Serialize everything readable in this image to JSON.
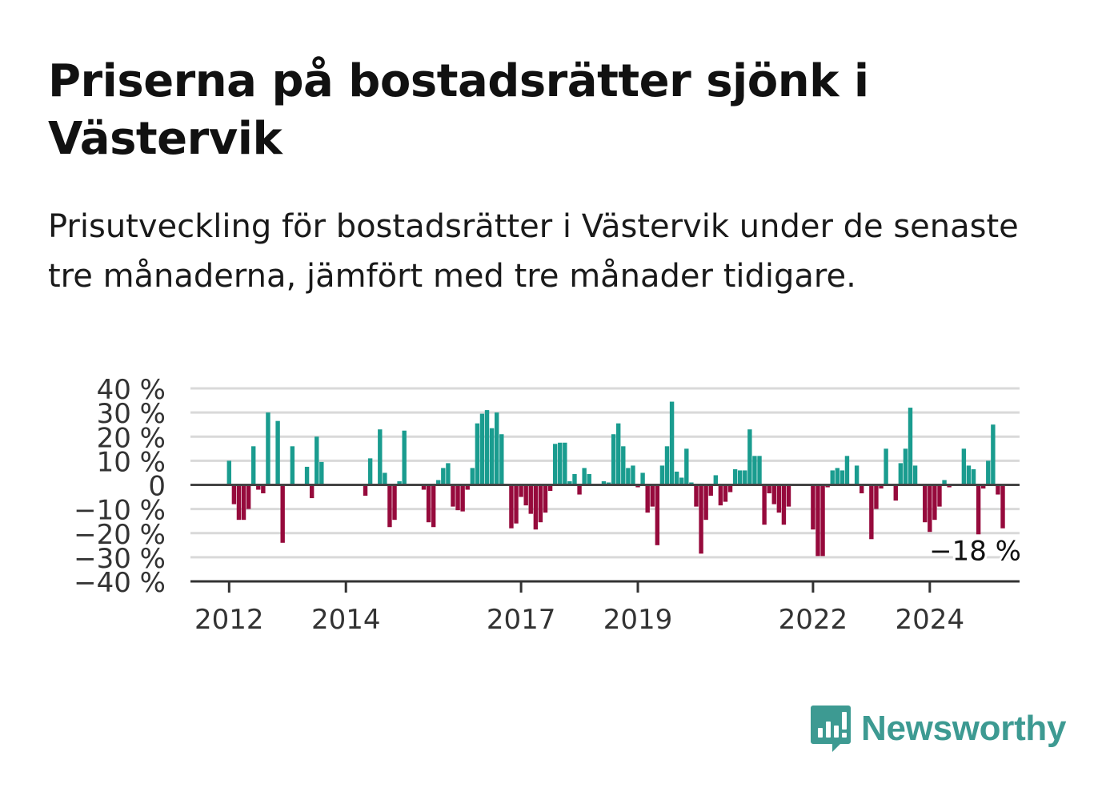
{
  "header": {
    "title": "Priserna på bostadsrätter sjönk i Västervik",
    "subtitle": "Prisutveckling för bostadsrätter i Västervik under de senaste tre månaderna, jämfört med tre månader tidigare."
  },
  "brand": {
    "name": "Newsworthy",
    "icon": "newsworthy-logo-icon",
    "color": "#3d9a92"
  },
  "colors": {
    "positive": "#1a9c8f",
    "negative": "#960a3c",
    "grid": "#d9d9d9",
    "axis": "#444444"
  },
  "chart_data": {
    "type": "bar",
    "title": "Priserna på bostadsrätter sjönk i Västervik",
    "x_unit": "month",
    "x_start": "2012-01",
    "x_end": "2024-12",
    "x_ticks": [
      "2012",
      "2014",
      "2017",
      "2019",
      "2022",
      "2024"
    ],
    "y_ticks": [
      40,
      30,
      20,
      10,
      0,
      -10,
      -20,
      -30,
      -40
    ],
    "y_tick_labels": [
      "40 %",
      "30 %",
      "20 %",
      "10 %",
      "0",
      "−10 %",
      "−20 %",
      "−30 %",
      "−40 %"
    ],
    "ylim": [
      -40,
      40
    ],
    "grid": true,
    "last_value_label": "−18 %",
    "series": [
      {
        "unit": "%",
        "values": [
          10,
          -8,
          -14.5,
          -14.5,
          -10,
          16,
          -2,
          -3.5,
          30,
          0,
          26.5,
          -24,
          0,
          16,
          0,
          0,
          7.5,
          -5.5,
          20,
          9.5,
          0,
          0,
          0,
          0,
          0,
          0,
          0,
          0,
          -4.5,
          11,
          0,
          23,
          5,
          -17.5,
          -14.5,
          1.5,
          22.5,
          0,
          0,
          0,
          -2,
          -15.5,
          -17.5,
          2,
          7,
          9,
          -9,
          -10.5,
          -11,
          -2,
          7,
          25.5,
          29.5,
          31,
          23.5,
          30,
          21,
          0,
          -18,
          -16,
          -5,
          -8.5,
          -12,
          -18.5,
          -15.5,
          -11.5,
          -2.5,
          17,
          17.5,
          17.5,
          1.5,
          4.5,
          -4,
          7,
          4.5,
          0,
          0,
          1.5,
          1,
          21,
          25.5,
          16,
          7,
          8,
          -1,
          5,
          -11.5,
          -9,
          -25,
          8,
          16,
          34.5,
          5.5,
          3,
          15,
          1,
          -9,
          -28.5,
          -14.5,
          -4.5,
          4,
          -8.5,
          -7,
          -3,
          6.5,
          6,
          6,
          23,
          12,
          12,
          -16.5,
          -3.5,
          -8,
          -11.5,
          -16.5,
          -9,
          0,
          0,
          0,
          0,
          -18.5,
          -29.5,
          -29.5,
          -1,
          6,
          7,
          6,
          12,
          0,
          8,
          -3.5,
          0,
          -22.5,
          -10,
          -1.5,
          15,
          0,
          -6.5,
          9,
          15,
          32,
          8,
          0,
          -15.5,
          -19.5,
          -14.5,
          -9,
          2,
          -1,
          0,
          0,
          15,
          8,
          6.5,
          -20.5,
          -1.5,
          10,
          25,
          -4,
          -18
        ]
      }
    ]
  }
}
